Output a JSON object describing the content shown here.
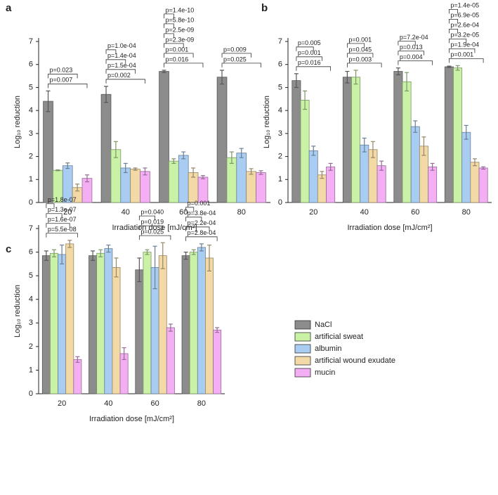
{
  "chart_data": [
    {
      "type": "bar",
      "panel": "a",
      "ylabel": "Log₁₀ reduction",
      "xlabel": "Irradiation dose [mJ/cm²]",
      "categories": [
        "20",
        "40",
        "60",
        "80"
      ],
      "ylim": [
        0,
        7
      ],
      "yticks": [
        0,
        1,
        2,
        3,
        4,
        5,
        6,
        7
      ],
      "series": [
        {
          "name": "NaCl",
          "color": "#8c8c8c",
          "values": [
            4.4,
            4.7,
            5.7,
            5.45
          ],
          "errors": [
            0.45,
            0.35,
            0.05,
            0.3
          ]
        },
        {
          "name": "artificial sweat",
          "color": "#c9f2a6",
          "values": [
            1.4,
            2.3,
            1.8,
            1.95
          ],
          "errors": [
            0.02,
            0.35,
            0.1,
            0.25
          ]
        },
        {
          "name": "albumin",
          "color": "#a9cdf2",
          "values": [
            1.6,
            1.5,
            2.05,
            2.15
          ],
          "errors": [
            0.12,
            0.2,
            0.15,
            0.2
          ]
        },
        {
          "name": "artificial wound exudate",
          "color": "#f2d9a6",
          "values": [
            0.65,
            1.45,
            1.3,
            1.35
          ],
          "errors": [
            0.15,
            0.05,
            0.2,
            0.12
          ]
        },
        {
          "name": "mucin",
          "color": "#f4aef4",
          "values": [
            1.05,
            1.35,
            1.1,
            1.3
          ],
          "errors": [
            0.15,
            0.15,
            0.07,
            0.08
          ]
        }
      ],
      "annotations": [
        [
          "p=0.023",
          "p=0.007"
        ],
        [
          "p=1.0e-04",
          "p=1.4e-04",
          "p=1.5e-04",
          "p=0.002"
        ],
        [
          "p=1.4e-10",
          "p=5.8e-10",
          "p=2.5e-09",
          "p=2.3e-09",
          "p=0.001",
          "p=0.016"
        ],
        [
          "p=0.009",
          "p=0.025"
        ]
      ]
    },
    {
      "type": "bar",
      "panel": "b",
      "ylabel": "Log₁₀ reduction",
      "xlabel": "Irradiation dose [mJ/cm²]",
      "categories": [
        "20",
        "40",
        "60",
        "80"
      ],
      "ylim": [
        0,
        7
      ],
      "yticks": [
        0,
        1,
        2,
        3,
        4,
        5,
        6,
        7
      ],
      "series": [
        {
          "name": "NaCl",
          "color": "#8c8c8c",
          "values": [
            5.3,
            5.45,
            5.7,
            5.9
          ],
          "errors": [
            0.3,
            0.25,
            0.15,
            0.03
          ]
        },
        {
          "name": "artificial sweat",
          "color": "#c9f2a6",
          "values": [
            4.45,
            5.45,
            5.25,
            5.85
          ],
          "errors": [
            0.4,
            0.3,
            0.4,
            0.1
          ]
        },
        {
          "name": "albumin",
          "color": "#a9cdf2",
          "values": [
            2.25,
            2.5,
            3.3,
            3.05
          ],
          "errors": [
            0.2,
            0.3,
            0.25,
            0.3
          ]
        },
        {
          "name": "artificial wound exudate",
          "color": "#f2d9a6",
          "values": [
            1.2,
            2.3,
            2.45,
            1.75
          ],
          "errors": [
            0.15,
            0.35,
            0.4,
            0.15
          ]
        },
        {
          "name": "mucin",
          "color": "#f4aef4",
          "values": [
            1.55,
            1.6,
            1.55,
            1.5
          ],
          "errors": [
            0.15,
            0.2,
            0.15,
            0.05
          ]
        }
      ],
      "annotations": [
        [
          "p=0.005",
          "p=0.001",
          "p=0.016"
        ],
        [
          "p=0.001",
          "p=0.045",
          "p=0.003"
        ],
        [
          "p=7.2e-04",
          "p=0.013",
          "p=0.004"
        ],
        [
          "p=1.4e-05",
          "p=6.9e-05",
          "p=2.6e-04",
          "p=3.2e-05",
          "p=1.9e-04",
          "p=0.001"
        ]
      ]
    },
    {
      "type": "bar",
      "panel": "c",
      "ylabel": "Log₁₀ reduction",
      "xlabel": "Irradiation dose [mJ/cm²]",
      "categories": [
        "20",
        "40",
        "60",
        "80"
      ],
      "ylim": [
        0,
        7
      ],
      "yticks": [
        0,
        1,
        2,
        3,
        4,
        5,
        6,
        7
      ],
      "series": [
        {
          "name": "NaCl",
          "color": "#8c8c8c",
          "values": [
            5.85,
            5.85,
            5.25,
            5.85
          ],
          "errors": [
            0.2,
            0.2,
            0.5,
            0.15
          ]
        },
        {
          "name": "artificial sweat",
          "color": "#c9f2a6",
          "values": [
            5.95,
            5.95,
            6.0,
            6.0
          ],
          "errors": [
            0.15,
            0.15,
            0.1,
            0.1
          ]
        },
        {
          "name": "albumin",
          "color": "#a9cdf2",
          "values": [
            5.9,
            6.15,
            5.35,
            6.2
          ],
          "errors": [
            0.4,
            0.15,
            0.9,
            0.15
          ]
        },
        {
          "name": "artificial wound exudate",
          "color": "#f2d9a6",
          "values": [
            6.35,
            5.35,
            5.85,
            5.75
          ],
          "errors": [
            0.15,
            0.4,
            0.55,
            0.55
          ]
        },
        {
          "name": "mucin",
          "color": "#f4aef4",
          "values": [
            1.45,
            1.7,
            2.8,
            2.7
          ],
          "errors": [
            0.12,
            0.25,
            0.15,
            0.1
          ]
        }
      ],
      "annotations": [
        [
          "p=1.8e-07",
          "p=1.3e-07",
          "p=1.6e-07",
          "p=5.5e-08"
        ],
        [],
        [
          "p=0.040",
          "p=0.019",
          "p=0.025"
        ],
        [
          "p=0.001",
          "p=3.8e-04",
          "p=2.2e-04",
          "p=2.8e-04"
        ]
      ],
      "legend": true
    }
  ]
}
